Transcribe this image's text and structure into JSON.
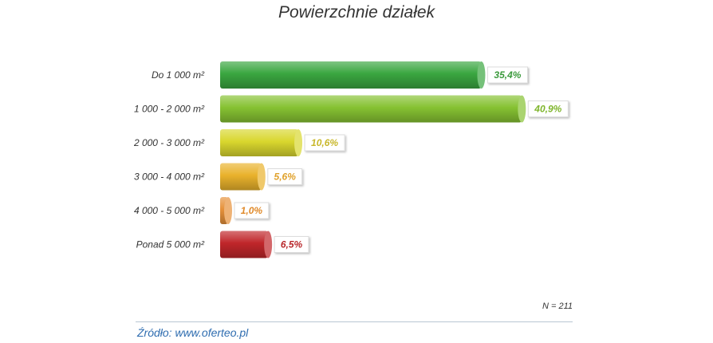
{
  "chart_data": {
    "type": "bar",
    "orientation": "horizontal",
    "title": "Powierzchnie działek",
    "categories": [
      "Do 1 000 m²",
      "1 000 - 2 000 m²",
      "2 000 - 3 000 m²",
      "3 000 - 4 000 m²",
      "4 000 - 5 000 m²",
      "Ponad 5 000 m²"
    ],
    "values": [
      35.4,
      40.9,
      10.6,
      5.6,
      1.0,
      6.5
    ],
    "value_labels": [
      "35,4%",
      "40,9%",
      "10,6%",
      "5,6%",
      "1,0%",
      "6,5%"
    ],
    "colors": [
      "#3aa640",
      "#86c232",
      "#d9d72e",
      "#e9b22c",
      "#e6913a",
      "#c0262a"
    ],
    "label_colors": [
      "#3b9a3c",
      "#7fb52c",
      "#c8b72a",
      "#e0a12a",
      "#e08a2a",
      "#b8262a"
    ],
    "unit": "%",
    "note": "N = 211",
    "source": "Źródło: www.oferteo.pl"
  }
}
